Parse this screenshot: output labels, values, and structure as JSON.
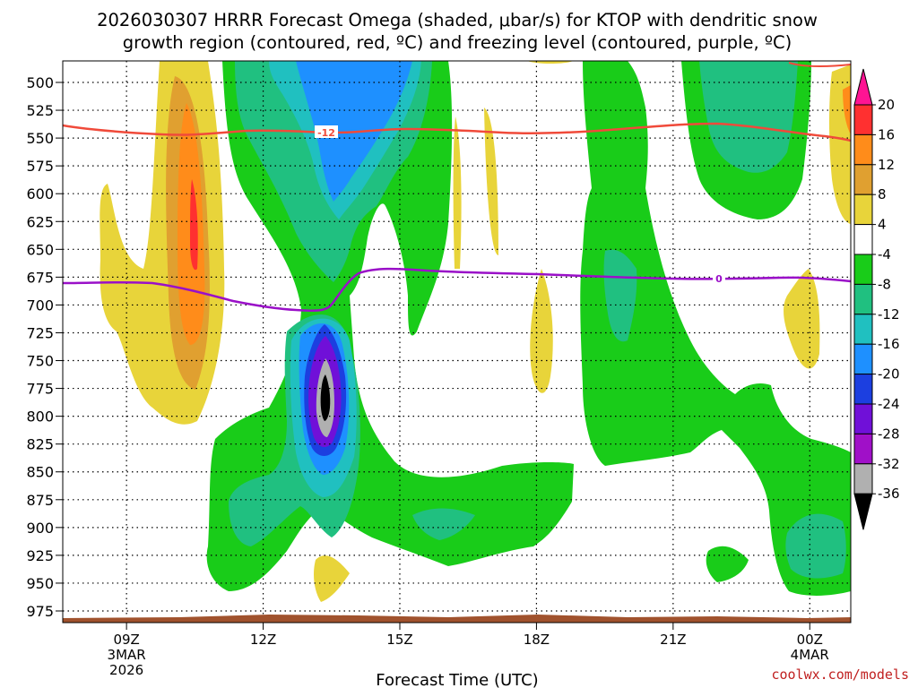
{
  "chart_data": {
    "type": "contour",
    "title_line1": "2026030307 HRRR Forecast Omega (shaded, μbar/s) for KTOP with dendritic snow",
    "title_line2": "growth region (contoured, red, ºC) and freezing level (contoured, purple, ºC)",
    "xlabel": "Forecast Time (UTC)",
    "credit": "coolwx.com/models",
    "y_levels": [
      "500",
      "525",
      "550",
      "575",
      "600",
      "625",
      "650",
      "675",
      "700",
      "725",
      "750",
      "775",
      "800",
      "825",
      "850",
      "875",
      "900",
      "925",
      "950",
      "975"
    ],
    "x_ticks": [
      {
        "label": "09Z",
        "sub1": "3MAR",
        "sub2": "2026",
        "hour": 2
      },
      {
        "label": "12Z",
        "sub1": "",
        "sub2": "",
        "hour": 5
      },
      {
        "label": "15Z",
        "sub1": "",
        "sub2": "",
        "hour": 8
      },
      {
        "label": "18Z",
        "sub1": "",
        "sub2": "",
        "hour": 11
      },
      {
        "label": "21Z",
        "sub1": "",
        "sub2": "",
        "hour": 14
      },
      {
        "label": "00Z",
        "sub1": "4MAR",
        "sub2": "",
        "hour": 17
      }
    ],
    "x_range_hours": [
      0.6,
      17.9
    ],
    "y_range_hPa": [
      480,
      990
    ],
    "colorbar": {
      "labels": [
        "20",
        "16",
        "12",
        "8",
        "4",
        "-4",
        "-8",
        "-12",
        "-16",
        "-20",
        "-24",
        "-28",
        "-32",
        "-36"
      ],
      "colors": [
        "#ff1493",
        "#ff3030",
        "#ff8c1a",
        "#e0a030",
        "#e8d43a",
        "#ffffff",
        "#19cc19",
        "#20c080",
        "#20c0c0",
        "#1e90ff",
        "#1c3fe0",
        "#7010d8",
        "#a010c8",
        "#b0b0b0",
        "#000000"
      ]
    },
    "contours": [
      {
        "name": "dendritic-growth-line",
        "value_label": "-12",
        "color": "#f04a3a"
      },
      {
        "name": "freezing-level-line",
        "value_label": "0",
        "color": "#9a10c8"
      }
    ]
  }
}
